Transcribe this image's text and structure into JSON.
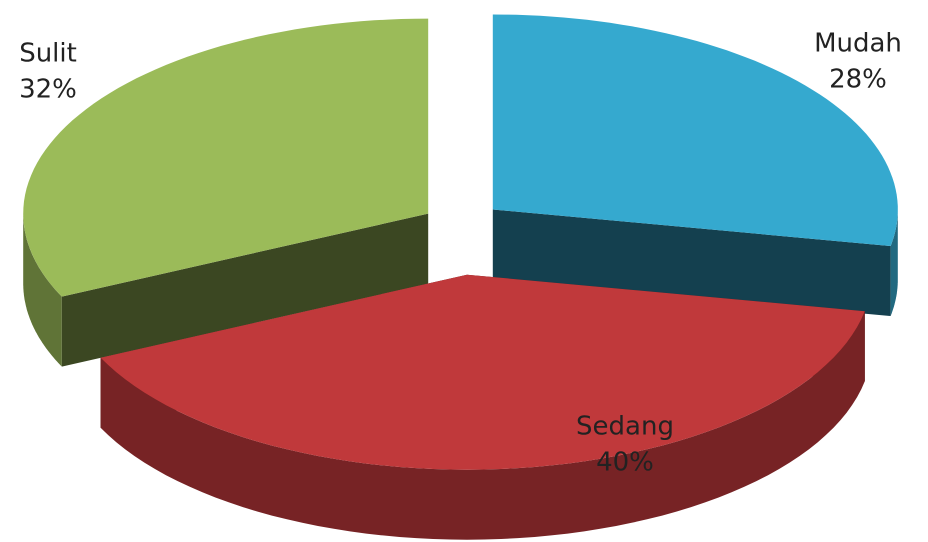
{
  "chart_data": {
    "type": "pie3d",
    "categories": [
      "Mudah",
      "Sedang",
      "Sulit"
    ],
    "values": [
      28,
      40,
      32
    ],
    "value_labels": [
      "28%",
      "40%",
      "32%"
    ],
    "colors": [
      "#35a9cf",
      "#c0393b",
      "#9bbb59"
    ]
  }
}
